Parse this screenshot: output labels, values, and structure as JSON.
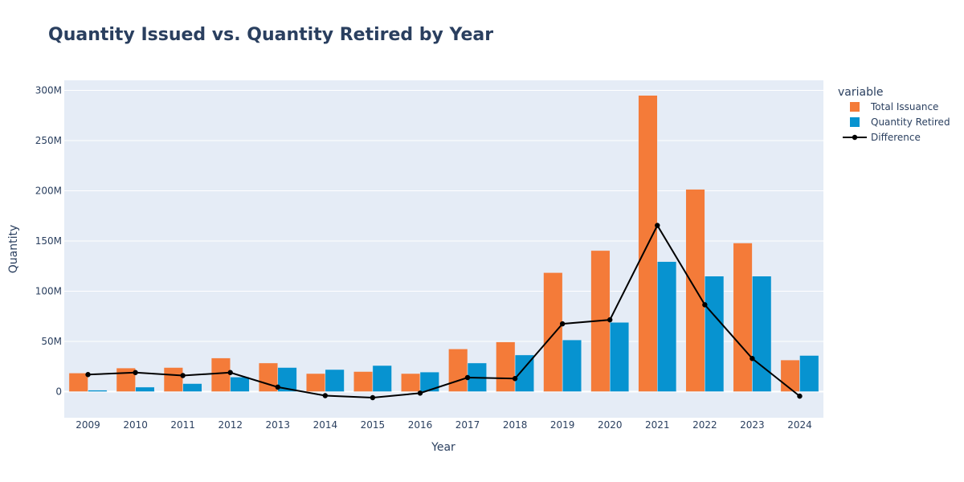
{
  "chart_data": {
    "type": "bar",
    "title": "Quantity Issued vs. Quantity Retired by Year",
    "xlabel": "Year",
    "ylabel": "Quantity",
    "categories": [
      "2009",
      "2010",
      "2011",
      "2012",
      "2013",
      "2014",
      "2015",
      "2016",
      "2017",
      "2018",
      "2019",
      "2020",
      "2021",
      "2022",
      "2023",
      "2024"
    ],
    "ylim": [
      -26000000,
      310000000
    ],
    "yticks": [
      0,
      50000000,
      100000000,
      150000000,
      200000000,
      250000000,
      300000000
    ],
    "ytick_labels": [
      "0",
      "50M",
      "100M",
      "150M",
      "200M",
      "250M",
      "300M"
    ],
    "grid": true,
    "legend": {
      "title": "variable",
      "position": "top-right"
    },
    "series": [
      {
        "name": "Total Issuance",
        "type": "bar",
        "color": "#f47b39",
        "values": [
          18500000,
          23500000,
          24000000,
          33500000,
          28500000,
          18000000,
          20000000,
          18000000,
          42500000,
          49500000,
          118500000,
          140500000,
          295000000,
          201500000,
          148000000,
          31500000
        ]
      },
      {
        "name": "Quantity Retired",
        "type": "bar",
        "color": "#0793d0",
        "values": [
          1500000,
          4500000,
          8000000,
          14500000,
          24000000,
          22000000,
          26000000,
          19500000,
          28500000,
          36500000,
          51500000,
          69000000,
          129500000,
          115000000,
          115000000,
          36000000
        ]
      },
      {
        "name": "Difference",
        "type": "line",
        "color": "#000000",
        "values": [
          17000000,
          19000000,
          16000000,
          19000000,
          4500000,
          -4000000,
          -6000000,
          -1500000,
          14000000,
          13000000,
          67500000,
          71500000,
          165500000,
          86500000,
          33000000,
          -4500000
        ]
      }
    ]
  }
}
